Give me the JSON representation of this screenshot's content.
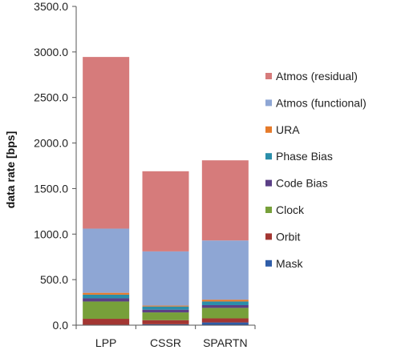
{
  "chart_data": {
    "type": "bar",
    "stacked": true,
    "ylabel": "data rate [bps]",
    "xlabel": "",
    "ylim": [
      0,
      3500
    ],
    "yticks": [
      0,
      500,
      1000,
      1500,
      2000,
      2500,
      3000,
      3500
    ],
    "ytick_labels": [
      "0.0",
      "500.0",
      "1000.0",
      "1500.0",
      "2000.0",
      "2500.0",
      "3000.0",
      "3500.0"
    ],
    "categories": [
      "LPP",
      "CSSR",
      "SPARTN"
    ],
    "grid": false,
    "legend_position": "right",
    "series": [
      {
        "name": "Mask",
        "color": "#2f5da8",
        "values": [
          5,
          10,
          30
        ]
      },
      {
        "name": "Orbit",
        "color": "#a33632",
        "values": [
          65,
          45,
          45
        ]
      },
      {
        "name": "Clock",
        "color": "#77a03a",
        "values": [
          190,
          85,
          115
        ]
      },
      {
        "name": "Code Bias",
        "color": "#5b3f86",
        "values": [
          35,
          30,
          30
        ]
      },
      {
        "name": "Phase Bias",
        "color": "#2a8eaa",
        "values": [
          40,
          35,
          40
        ]
      },
      {
        "name": "URA",
        "color": "#e57a2a",
        "values": [
          20,
          10,
          20
        ]
      },
      {
        "name": "Atmos (functional)",
        "color": "#8ea6d4",
        "values": [
          705,
          595,
          650
        ]
      },
      {
        "name": "Atmos (residual)",
        "color": "#d67b7b",
        "values": [
          1885,
          880,
          880
        ]
      }
    ]
  }
}
